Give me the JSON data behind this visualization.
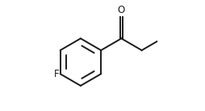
{
  "background_color": "#ffffff",
  "line_color": "#1a1a1a",
  "line_width": 1.4,
  "font_size_label": 8.5,
  "label_F": "F",
  "label_O": "O",
  "figsize": [
    2.54,
    1.37
  ],
  "dpi": 100
}
